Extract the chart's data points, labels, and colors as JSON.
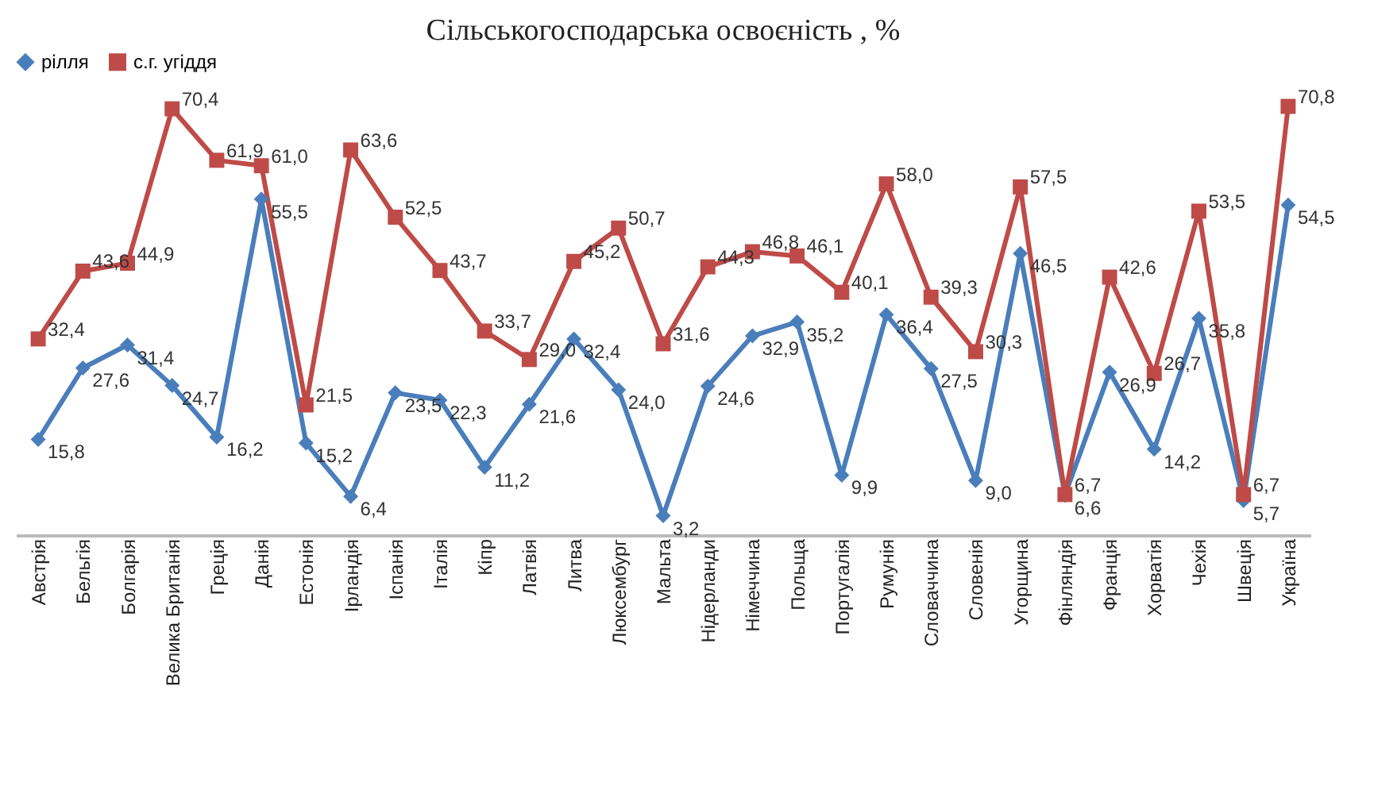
{
  "chart_data": {
    "type": "line",
    "title": "Сільськогосподарська освоєність , %",
    "categories": [
      "Австрія",
      "Бельгія",
      "Болгарія",
      "Велика Британія",
      "Греція",
      "Данія",
      "Естонія",
      "Ірландія",
      "Іспанія",
      "Італія",
      "Кіпр",
      "Латвія",
      "Литва",
      "Люксембург",
      "Мальта",
      "Нідерланди",
      "Німеччина",
      "Польща",
      "Португалія",
      "Румунія",
      "Словаччина",
      "Словенія",
      "Угорщина",
      "Фінляндія",
      "Франція",
      "Хорватія",
      "Чехія",
      "Швеція",
      "Україна"
    ],
    "series": [
      {
        "name": "рілля",
        "color": "#4a7ebb",
        "marker": "diamond",
        "values": [
          15.8,
          27.6,
          31.4,
          24.7,
          16.2,
          55.5,
          15.2,
          6.4,
          23.5,
          22.3,
          11.2,
          21.6,
          32.4,
          24.0,
          3.2,
          24.6,
          32.9,
          35.2,
          9.9,
          36.4,
          27.5,
          9.0,
          46.5,
          6.6,
          26.9,
          14.2,
          35.8,
          5.7,
          54.5
        ],
        "value_labels": [
          "15,8",
          "27,6",
          "31,4",
          "24,7",
          "16,2",
          "55,5",
          "15,2",
          "6,4",
          "23,5",
          "22,3",
          "11,2",
          "21,6",
          "32,4",
          "24,0",
          "3,2",
          "24,6",
          "32,9",
          "35,2",
          "9,9",
          "36,4",
          "27,5",
          "9,0",
          "46,5",
          "6,6",
          "26,9",
          "14,2",
          "35,8",
          "5,7",
          "54,5"
        ]
      },
      {
        "name": "с.г. угіддя",
        "color": "#be4b48",
        "marker": "square",
        "values": [
          32.4,
          43.6,
          44.9,
          70.4,
          61.9,
          61.0,
          21.5,
          63.6,
          52.5,
          43.7,
          33.7,
          29.0,
          45.2,
          50.7,
          31.6,
          44.3,
          46.8,
          46.1,
          40.1,
          58.0,
          39.3,
          30.3,
          57.5,
          6.7,
          42.6,
          26.7,
          53.5,
          6.7,
          70.8
        ],
        "value_labels": [
          "32,4",
          "43,6",
          "44,9",
          "70,4",
          "61,9",
          "61,0",
          "21,5",
          "63,6",
          "52,5",
          "43,7",
          "33,7",
          "29,0",
          "45,2",
          "50,7",
          "31,6",
          "44,3",
          "46,8",
          "46,1",
          "40,1",
          "58,0",
          "39,3",
          "30,3",
          "57,5",
          "6,7",
          "42,6",
          "26,7",
          "53,5",
          "6,7",
          "70,8"
        ]
      }
    ],
    "legend": "top",
    "grid": false,
    "line_style": "solid"
  }
}
